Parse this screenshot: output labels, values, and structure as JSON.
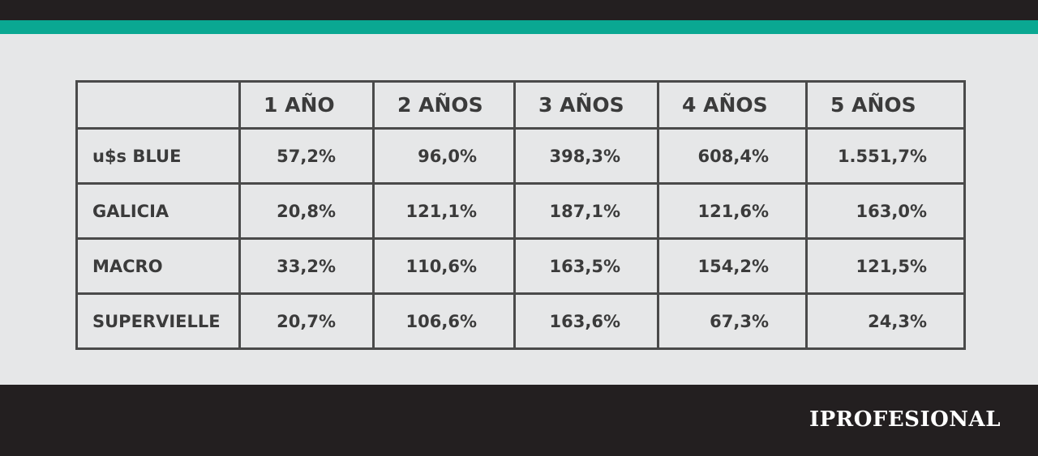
{
  "table": {
    "header": [
      "1 AÑO",
      "2 AÑOS",
      "3 AÑOS",
      "4 AÑOS",
      "5 AÑOS"
    ],
    "rows": [
      {
        "label": "u$s BLUE",
        "cells": [
          "57,2%",
          "96,0%",
          "398,3%",
          "608,4%",
          "1.551,7%"
        ]
      },
      {
        "label": "GALICIA",
        "cells": [
          "20,8%",
          "121,1%",
          "187,1%",
          "121,6%",
          "163,0%"
        ]
      },
      {
        "label": "MACRO",
        "cells": [
          "33,2%",
          "110,6%",
          "163,5%",
          "154,2%",
          "121,5%"
        ]
      },
      {
        "label": "SUPERVIELLE",
        "cells": [
          "20,7%",
          "106,6%",
          "163,6%",
          "67,3%",
          "24,3%"
        ]
      }
    ]
  },
  "footer": {
    "brand": "IPROFESIONAL"
  }
}
